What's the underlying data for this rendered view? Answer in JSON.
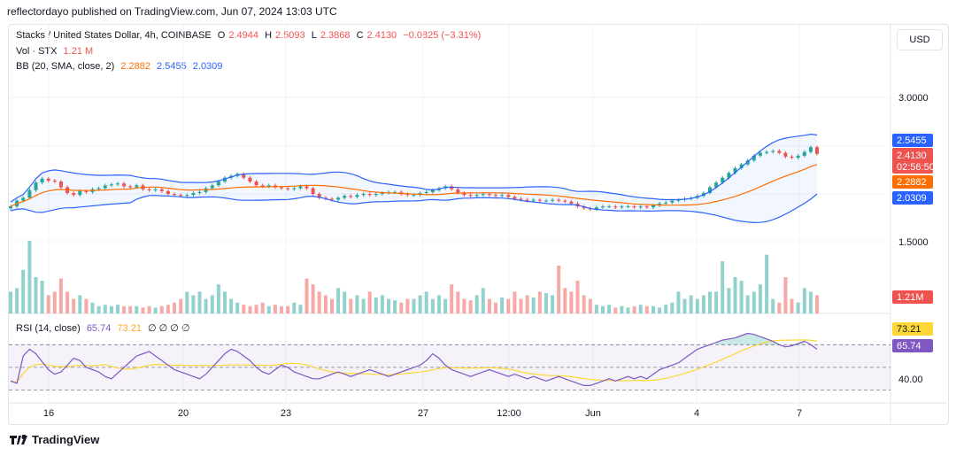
{
  "header": {
    "publisher": "reflectordayo published on TradingView.com, Jun 07, 2024 13:03 UTC"
  },
  "legend": {
    "symbol": "Stacks / United States Dollar, 4h, COINBASE",
    "o_label": "O",
    "o": "2.4944",
    "h_label": "H",
    "h": "2.5093",
    "l_label": "L",
    "l": "2.3868",
    "c_label": "C",
    "c": "2.4130",
    "change": "−0.0825 (−3.31%)",
    "vol_label": "Vol · STX",
    "vol": "1.21 M",
    "bb_label": "BB (20, SMA, close, 2)",
    "bb_mid": "2.2882",
    "bb_upper": "2.5455",
    "bb_lower": "2.0309",
    "rsi_label": "RSI (14, close)",
    "rsi": "65.74",
    "rsi_ma": "73.21",
    "rsi_extra": "∅ ∅ ∅ ∅"
  },
  "currency_button": "USD",
  "footer": {
    "brand": "TradingView"
  },
  "colors": {
    "up": "#26a69a",
    "down": "#ef5350",
    "bb_mid": "#ff6d00",
    "bb_band": "#2962ff",
    "rsi": "#7e57c2",
    "rsi_ma": "#fdd835"
  },
  "chart_data": [
    {
      "type": "candlestick",
      "pane": "price",
      "y_ticks": [
        "3.0000",
        "1.5000"
      ],
      "ylim": [
        1.5,
        3.0
      ],
      "x_tick_labels": [
        "16",
        "20",
        "23",
        "27",
        "12:00",
        "Jun",
        "4",
        "7"
      ],
      "price_labels": {
        "bb_upper": "2.5455",
        "last": "2.4130",
        "countdown": "02:56:50",
        "bb_mid": "2.2882",
        "bb_lower": "2.0309",
        "volume": "1.21M"
      },
      "close": [
        1.86,
        1.92,
        1.95,
        2.03,
        2.11,
        2.15,
        2.13,
        2.12,
        2.06,
        2.0,
        1.98,
        2.02,
        2.01,
        2.04,
        2.05,
        2.08,
        2.09,
        2.1,
        2.07,
        2.06,
        2.08,
        2.04,
        2.03,
        2.04,
        2.02,
        1.99,
        1.98,
        1.97,
        1.98,
        2.0,
        2.01,
        2.05,
        2.08,
        2.12,
        2.16,
        2.18,
        2.2,
        2.16,
        2.12,
        2.08,
        2.07,
        2.08,
        2.06,
        2.05,
        2.04,
        2.05,
        2.07,
        2.05,
        1.99,
        1.95,
        1.94,
        1.93,
        1.95,
        1.97,
        1.96,
        1.98,
        1.99,
        1.98,
        1.99,
        2.0,
        2.01,
        2.01,
        1.99,
        1.98,
        1.98,
        2.0,
        2.01,
        2.03,
        2.05,
        2.07,
        2.04,
        2.0,
        1.98,
        1.97,
        1.98,
        1.99,
        1.98,
        1.97,
        1.98,
        1.96,
        1.94,
        1.93,
        1.92,
        1.93,
        1.92,
        1.92,
        1.93,
        1.92,
        1.91,
        1.89,
        1.86,
        1.84,
        1.83,
        1.85,
        1.86,
        1.86,
        1.85,
        1.86,
        1.86,
        1.85,
        1.86,
        1.85,
        1.87,
        1.89,
        1.9,
        1.92,
        1.93,
        1.94,
        1.95,
        1.97,
        2.0,
        2.06,
        2.11,
        2.16,
        2.21,
        2.26,
        2.3,
        2.34,
        2.39,
        2.42,
        2.43,
        2.44,
        2.42,
        2.38,
        2.37,
        2.39,
        2.43,
        2.48,
        2.41
      ],
      "volume_relative": [
        0.3,
        0.35,
        0.6,
        1.0,
        0.5,
        0.45,
        0.25,
        0.3,
        0.48,
        0.3,
        0.2,
        0.25,
        0.2,
        0.15,
        0.1,
        0.12,
        0.1,
        0.12,
        0.1,
        0.1,
        0.1,
        0.08,
        0.1,
        0.08,
        0.1,
        0.12,
        0.15,
        0.2,
        0.3,
        0.25,
        0.3,
        0.2,
        0.25,
        0.4,
        0.3,
        0.2,
        0.15,
        0.12,
        0.1,
        0.12,
        0.15,
        0.1,
        0.12,
        0.1,
        0.1,
        0.15,
        0.12,
        0.48,
        0.4,
        0.3,
        0.25,
        0.2,
        0.35,
        0.3,
        0.2,
        0.25,
        0.2,
        0.3,
        0.22,
        0.25,
        0.2,
        0.18,
        0.15,
        0.2,
        0.2,
        0.25,
        0.3,
        0.2,
        0.25,
        0.2,
        0.4,
        0.3,
        0.2,
        0.18,
        0.25,
        0.35,
        0.2,
        0.15,
        0.22,
        0.2,
        0.3,
        0.2,
        0.25,
        0.22,
        0.3,
        0.28,
        0.25,
        0.66,
        0.35,
        0.3,
        0.45,
        0.25,
        0.2,
        0.12,
        0.1,
        0.12,
        0.08,
        0.1,
        0.08,
        0.1,
        0.12,
        0.1,
        0.1,
        0.08,
        0.12,
        0.15,
        0.3,
        0.2,
        0.25,
        0.2,
        0.25,
        0.3,
        0.3,
        0.72,
        0.35,
        0.5,
        0.45,
        0.25,
        0.3,
        0.4,
        0.81,
        0.2,
        0.15,
        0.5,
        0.2,
        0.15,
        0.35,
        0.3,
        0.25
      ]
    },
    {
      "type": "line",
      "pane": "rsi",
      "y_ticks": [
        "40.00"
      ],
      "guide_levels": [
        70,
        50,
        30
      ],
      "ylim": [
        25,
        85
      ],
      "series": [
        {
          "name": "RSI (14, close)",
          "values": [
            38,
            36,
            60,
            66,
            62,
            55,
            48,
            44,
            46,
            52,
            58,
            56,
            50,
            48,
            46,
            42,
            40,
            45,
            50,
            55,
            60,
            62,
            64,
            60,
            56,
            52,
            48,
            46,
            44,
            42,
            40,
            44,
            50,
            56,
            62,
            66,
            64,
            60,
            56,
            50,
            46,
            44,
            48,
            52,
            50,
            46,
            44,
            42,
            40,
            40,
            42,
            44,
            46,
            44,
            42,
            44,
            46,
            48,
            46,
            44,
            42,
            44,
            46,
            48,
            50,
            52,
            56,
            62,
            58,
            52,
            48,
            46,
            44,
            42,
            44,
            46,
            48,
            46,
            44,
            42,
            44,
            42,
            40,
            42,
            40,
            38,
            40,
            42,
            40,
            38,
            36,
            34,
            34,
            36,
            38,
            40,
            38,
            40,
            42,
            40,
            42,
            40,
            44,
            48,
            50,
            52,
            54,
            58,
            62,
            66,
            68,
            70,
            72,
            74,
            75,
            76,
            78,
            80,
            79,
            77,
            75,
            73,
            70,
            68,
            69,
            71,
            73,
            70,
            66
          ]
        }
      ]
    }
  ]
}
